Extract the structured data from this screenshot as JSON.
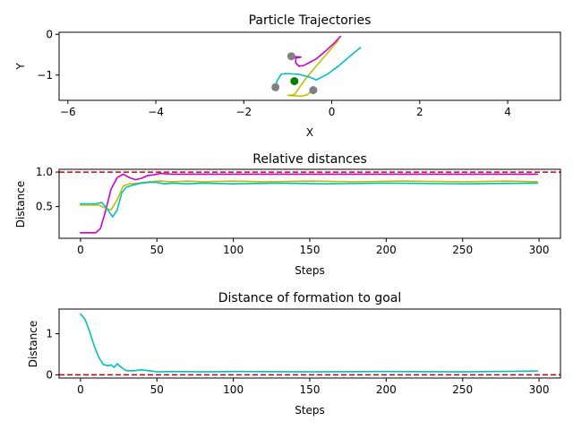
{
  "chart_data": [
    {
      "type": "line",
      "title": "Particle Trajectories",
      "xlabel": "X",
      "ylabel": "Y",
      "xlim": [
        -6.2,
        5.2
      ],
      "ylim": [
        -1.62,
        0.05
      ],
      "xticks": [
        -6,
        -4,
        -2,
        0,
        2,
        4
      ],
      "yticks": [
        0,
        -1
      ],
      "series": [
        {
          "color": "#cc00cc",
          "x": [
            0.2,
            0.05,
            -0.15,
            -0.35,
            -0.55,
            -0.65,
            -0.75,
            -0.82,
            -0.82,
            -0.7,
            -0.9
          ],
          "y": [
            -0.05,
            -0.22,
            -0.42,
            -0.6,
            -0.72,
            -0.77,
            -0.78,
            -0.7,
            -0.58,
            -0.56,
            -0.54
          ]
        },
        {
          "color": "#bfbf00",
          "x": [
            0.15,
            -0.05,
            -0.25,
            -0.45,
            -0.6,
            -0.7,
            -0.85,
            -1.0,
            -0.68,
            -0.55,
            -0.45
          ],
          "y": [
            -0.15,
            -0.4,
            -0.65,
            -0.9,
            -1.1,
            -1.25,
            -1.48,
            -1.5,
            -1.52,
            -1.48,
            -1.37
          ]
        },
        {
          "color": "#00bfbf",
          "x": [
            0.65,
            0.4,
            0.15,
            -0.1,
            -0.35,
            -0.5,
            -0.75,
            -1.05,
            -1.15,
            -1.25,
            -1.28
          ],
          "y": [
            -0.33,
            -0.55,
            -0.78,
            -0.98,
            -1.12,
            -1.05,
            -0.98,
            -0.96,
            -0.98,
            -1.15,
            -1.3
          ]
        }
      ],
      "points": [
        {
          "x": -0.92,
          "y": -0.54,
          "color": "#808080"
        },
        {
          "x": -1.28,
          "y": -1.3,
          "color": "#808080"
        },
        {
          "x": -0.42,
          "y": -1.37,
          "color": "#808080"
        },
        {
          "x": -0.85,
          "y": -1.15,
          "color": "#008000"
        }
      ]
    },
    {
      "type": "line",
      "title": "Relative distances",
      "xlabel": "Steps",
      "ylabel": "Distance",
      "xlim": [
        -14,
        314
      ],
      "ylim": [
        0.04,
        1.04
      ],
      "xticks": [
        0,
        50,
        100,
        150,
        200,
        250,
        300
      ],
      "yticks": [
        0.5,
        1.0
      ],
      "ytick_labels": [
        "0.5",
        "1.0"
      ],
      "reference_line": {
        "y": 1.0,
        "color": "#cc0000"
      },
      "series": [
        {
          "color": "#cc00cc",
          "x": [
            0,
            10,
            13,
            16,
            20,
            24,
            28,
            32,
            36,
            40,
            44,
            48,
            52,
            60,
            80,
            100,
            130,
            160,
            200,
            250,
            299
          ],
          "y": [
            0.12,
            0.12,
            0.18,
            0.4,
            0.75,
            0.92,
            0.97,
            0.92,
            0.89,
            0.91,
            0.95,
            0.96,
            0.98,
            0.97,
            0.97,
            0.97,
            0.97,
            0.97,
            0.97,
            0.97,
            0.97
          ]
        },
        {
          "color": "#bfbf00",
          "x": [
            0,
            12,
            16,
            20,
            24,
            28,
            32,
            38,
            45,
            52,
            60,
            70,
            80,
            100,
            120,
            150,
            180,
            210,
            250,
            280,
            299
          ],
          "y": [
            0.52,
            0.52,
            0.48,
            0.45,
            0.6,
            0.8,
            0.83,
            0.84,
            0.86,
            0.87,
            0.86,
            0.87,
            0.86,
            0.87,
            0.86,
            0.87,
            0.86,
            0.87,
            0.86,
            0.87,
            0.86
          ]
        },
        {
          "color": "#00bfbf",
          "x": [
            0,
            10,
            14,
            18,
            21,
            24,
            27,
            30,
            34,
            40,
            45,
            50,
            55,
            60,
            70,
            80,
            100,
            130,
            160,
            200,
            250,
            299
          ],
          "y": [
            0.54,
            0.54,
            0.56,
            0.45,
            0.35,
            0.45,
            0.7,
            0.78,
            0.81,
            0.84,
            0.85,
            0.85,
            0.83,
            0.84,
            0.83,
            0.84,
            0.83,
            0.84,
            0.83,
            0.84,
            0.83,
            0.84
          ]
        }
      ]
    },
    {
      "type": "line",
      "title": "Distance of formation to goal",
      "xlabel": "Steps",
      "ylabel": "Distance",
      "xlim": [
        -14,
        314
      ],
      "ylim": [
        -0.08,
        1.6
      ],
      "xticks": [
        0,
        50,
        100,
        150,
        200,
        250,
        300
      ],
      "yticks": [
        0,
        1
      ],
      "reference_line": {
        "y": 0,
        "color": "#cc0000"
      },
      "series": [
        {
          "color": "#00bfbf",
          "x": [
            0,
            3,
            6,
            9,
            12,
            15,
            18,
            20,
            22,
            24,
            27,
            30,
            35,
            40,
            50,
            60,
            80,
            100,
            150,
            200,
            250,
            299
          ],
          "y": [
            1.48,
            1.35,
            1.05,
            0.7,
            0.42,
            0.25,
            0.22,
            0.24,
            0.18,
            0.27,
            0.17,
            0.1,
            0.1,
            0.12,
            0.07,
            0.08,
            0.07,
            0.08,
            0.07,
            0.08,
            0.07,
            0.09
          ]
        }
      ]
    }
  ]
}
